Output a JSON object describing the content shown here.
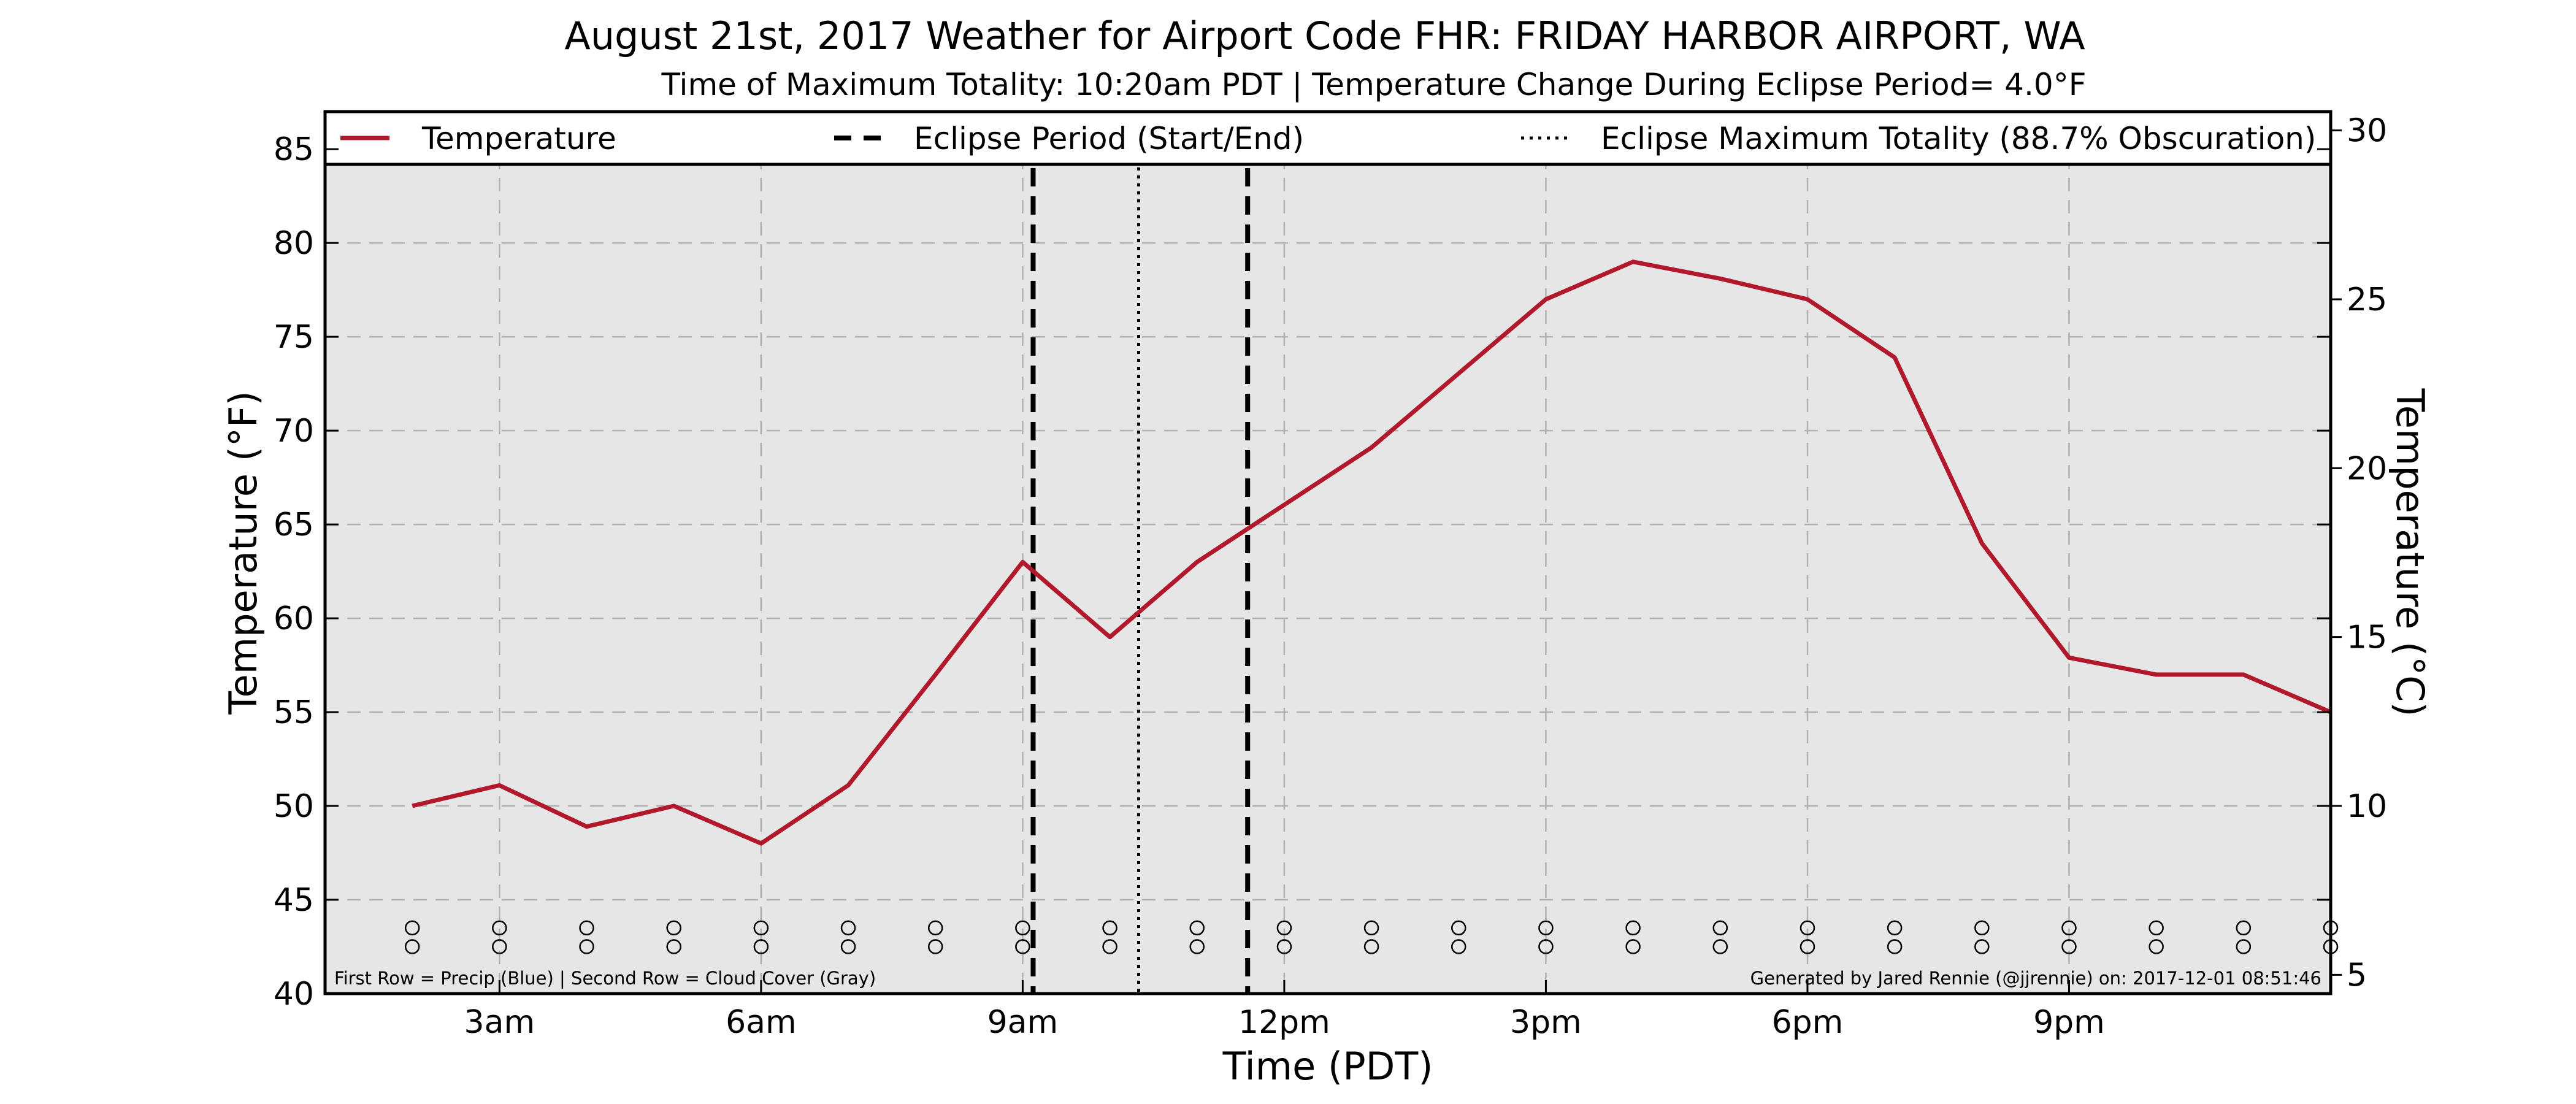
{
  "chart_data": {
    "type": "line",
    "title": "August 21st, 2017 Weather for Airport Code FHR: FRIDAY HARBOR AIRPORT, WA",
    "subtitle": "Time of Maximum Totality: 10:20am PDT | Temperature Change During Eclipse Period= 4.0°F",
    "xlabel": "Time (PDT)",
    "ylabel": "Temperature (°F)",
    "ylabel_right": "Temperature (°C)",
    "x_ticks": [
      {
        "hour": 3,
        "label": "3am"
      },
      {
        "hour": 6,
        "label": "6am"
      },
      {
        "hour": 9,
        "label": "9am"
      },
      {
        "hour": 12,
        "label": "12pm"
      },
      {
        "hour": 15,
        "label": "3pm"
      },
      {
        "hour": 18,
        "label": "6pm"
      },
      {
        "hour": 21,
        "label": "9pm"
      }
    ],
    "xlim": [
      1,
      24
    ],
    "ylim": [
      40,
      87
    ],
    "y_ticks": [
      40,
      45,
      50,
      55,
      60,
      65,
      70,
      75,
      80,
      85
    ],
    "y_right_ticks": [
      5,
      10,
      15,
      20,
      25,
      30
    ],
    "grid": true,
    "legend_position": "top",
    "legend": [
      {
        "label": "Temperature",
        "style": "solid",
        "color": "#b2182b"
      },
      {
        "label": "Eclipse Period (Start/End)",
        "style": "dashed",
        "color": "#000000"
      },
      {
        "label": "Eclipse Maximum Totality (88.7% Obscuration)",
        "style": "dotted",
        "color": "#000000"
      }
    ],
    "series": [
      {
        "name": "Temperature",
        "color": "#b2182b",
        "x": [
          2,
          3,
          4,
          5,
          6,
          7,
          8,
          9,
          10,
          11,
          13,
          15,
          16,
          17,
          18,
          19,
          20,
          21,
          22,
          23,
          24
        ],
        "values": [
          50,
          51.1,
          48.9,
          50,
          48,
          51.1,
          57,
          63,
          59,
          63,
          69.1,
          77,
          79,
          78.1,
          77,
          73.9,
          64,
          57.9,
          57,
          57,
          55
        ]
      }
    ],
    "eclipse_start_hour": 9.12,
    "eclipse_end_hour": 11.58,
    "eclipse_max_hour": 10.33,
    "marker_row_hours": [
      2,
      3,
      4,
      5,
      6,
      7,
      8,
      9,
      10,
      11,
      12,
      13,
      14,
      15,
      16,
      17,
      18,
      19,
      20,
      21,
      22,
      23,
      24
    ],
    "marker_row_values": [
      43.5,
      42.5
    ],
    "marker_rows_colors": {
      "precip": "#0000ff",
      "cloud_cover": "#808080"
    },
    "footnote_left": "First Row = Precip (Blue) | Second Row = Cloud Cover (Gray)",
    "footnote_right": "Generated by Jared Rennie (@jjrennie) on: 2017-12-01 08:51:46",
    "colors": {
      "plot_background": "#e6e6e6",
      "grid": "#b0b0b0"
    }
  }
}
